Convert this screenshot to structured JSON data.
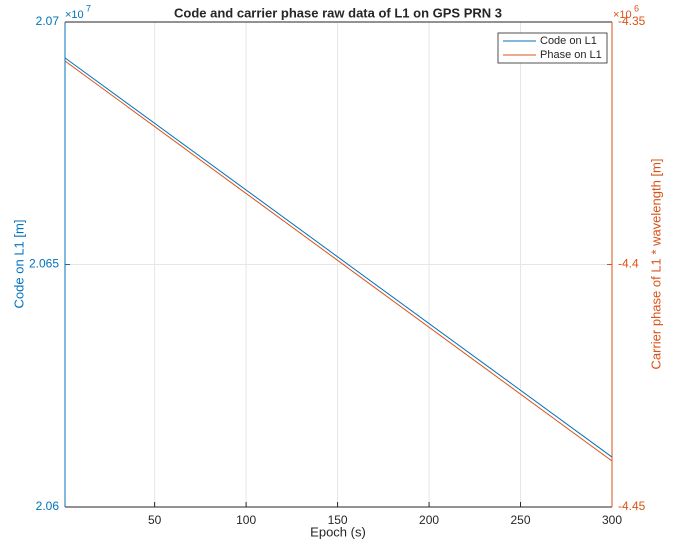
{
  "chart_data": {
    "type": "line",
    "title": "Code and carrier phase raw data of L1 on GPS PRN 3",
    "xlabel": "Epoch (s)",
    "ylabel": "Code on L1 [m]",
    "y2label": "Carrier phase of L1 * wavelength [m]",
    "exponent_base": "×10",
    "y_exponent": "7",
    "y2_exponent": "6",
    "x": [
      1,
      300
    ],
    "series": [
      {
        "name": "Code on L1",
        "color": "#0072BD",
        "values": [
          20692600,
          20610300
        ]
      },
      {
        "name": "Phase on L1",
        "color": "#D95319",
        "axis": "y2",
        "values": [
          -4358040,
          -4440520
        ]
      }
    ],
    "xlim": [
      1,
      300
    ],
    "xticks": [
      50,
      100,
      150,
      200,
      250,
      300
    ],
    "ylim": [
      20600000,
      20700000
    ],
    "yticks": [
      {
        "value": 20600000,
        "label": "2.06"
      },
      {
        "value": 20650000,
        "label": "2.065"
      },
      {
        "value": 20700000,
        "label": "2.07"
      }
    ],
    "y2lim": [
      -4450000,
      -4350000
    ],
    "y2ticks": [
      {
        "value": -4450000,
        "label": "-4.45"
      },
      {
        "value": -4400000,
        "label": "-4.4"
      },
      {
        "value": -4350000,
        "label": "-4.35"
      }
    ],
    "grid": true,
    "legend": "top-right"
  }
}
